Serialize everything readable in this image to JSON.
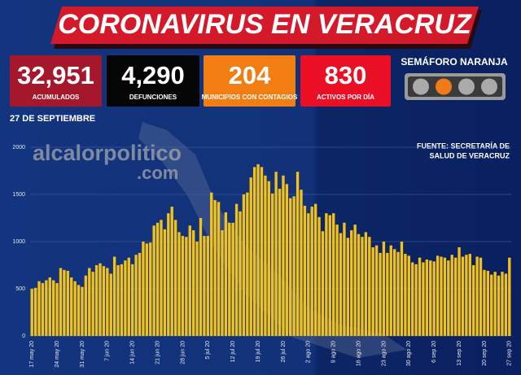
{
  "header": {
    "title": "CORONAVIRUS EN VERACRUZ",
    "stats": [
      {
        "value": "32,951",
        "label": "ACUMULADOS",
        "color": "#a5182c"
      },
      {
        "value": "4,290",
        "label": "DEFUNCIONES",
        "color": "#050505"
      },
      {
        "value": "204",
        "label": "MUNICIPIOS CON CONTAGIOS",
        "color": "#f27d12"
      },
      {
        "value": "830",
        "label": "ACTIVOS POR DÍA",
        "color": "#ea0f25"
      }
    ],
    "semaforo": "SEMÁFORO NARANJA",
    "date": "27 DE SEPTIEMBRE",
    "source": [
      "FUENTE: SECRETARÍA DE",
      "SALUD DE VERACRUZ"
    ],
    "watermark": [
      "alcalorpolitico",
      ".com"
    ]
  },
  "chart_data": {
    "type": "bar",
    "color": "#f2c21b",
    "categories": [
      "17 may 20",
      null,
      null,
      null,
      null,
      null,
      null,
      "24 may 20",
      null,
      null,
      null,
      null,
      null,
      null,
      "31 may 20",
      null,
      null,
      null,
      null,
      null,
      null,
      "7 jun 20",
      null,
      null,
      null,
      null,
      null,
      null,
      "14 jun 20",
      null,
      null,
      null,
      null,
      null,
      null,
      "21 jun 20",
      null,
      null,
      null,
      null,
      null,
      null,
      "28 jun 20",
      null,
      null,
      null,
      null,
      null,
      null,
      "5 jul 20",
      null,
      null,
      null,
      null,
      null,
      null,
      "12 jul 20",
      null,
      null,
      null,
      null,
      null,
      null,
      "19 jul 20",
      null,
      null,
      null,
      null,
      null,
      null,
      "26 jul 20",
      null,
      null,
      null,
      null,
      null,
      null,
      "2 ago 20",
      null,
      null,
      null,
      null,
      null,
      null,
      "9 ago 20",
      null,
      null,
      null,
      null,
      null,
      null,
      "16 ago 20",
      null,
      null,
      null,
      null,
      null,
      null,
      "23 ago 20",
      null,
      null,
      null,
      null,
      null,
      null,
      "30 ago 20",
      null,
      null,
      null,
      null,
      null,
      null,
      "6 sep 20",
      null,
      null,
      null,
      null,
      null,
      null,
      "13 sep 20",
      null,
      null,
      null,
      null,
      null,
      null,
      "20 sep 20",
      null,
      null,
      null,
      null,
      null,
      null,
      "27 sep 20"
    ],
    "values": [
      500,
      510,
      580,
      560,
      590,
      620,
      590,
      560,
      720,
      700,
      690,
      620,
      580,
      540,
      520,
      640,
      720,
      680,
      750,
      770,
      740,
      720,
      660,
      840,
      750,
      760,
      800,
      830,
      760,
      860,
      880,
      1000,
      980,
      990,
      1170,
      1200,
      1230,
      1130,
      1300,
      1370,
      1230,
      1100,
      1060,
      1050,
      1170,
      1120,
      1000,
      1250,
      1060,
      1060,
      1520,
      1440,
      1420,
      1120,
      1310,
      1200,
      1200,
      1400,
      1320,
      1500,
      1520,
      1680,
      1790,
      1820,
      1790,
      1700,
      1640,
      1510,
      1740,
      1560,
      1700,
      1610,
      1460,
      1480,
      1740,
      1550,
      1380,
      1300,
      1370,
      1400,
      1260,
      1110,
      1300,
      1280,
      1300,
      1180,
      1090,
      1200,
      1040,
      1120,
      1180,
      1080,
      1050,
      1100,
      1050,
      940,
      960,
      880,
      1000,
      880,
      960,
      920,
      890,
      1000,
      870,
      850,
      780,
      760,
      830,
      780,
      810,
      800,
      790,
      850,
      840,
      830,
      800,
      860,
      830,
      940,
      840,
      860,
      870,
      750,
      840,
      830,
      700,
      690,
      650,
      680,
      640,
      680,
      660,
      830
    ],
    "ylim": [
      0,
      2000
    ],
    "yticks": [
      0,
      500,
      1000,
      1500,
      2000
    ],
    "grid": true
  }
}
